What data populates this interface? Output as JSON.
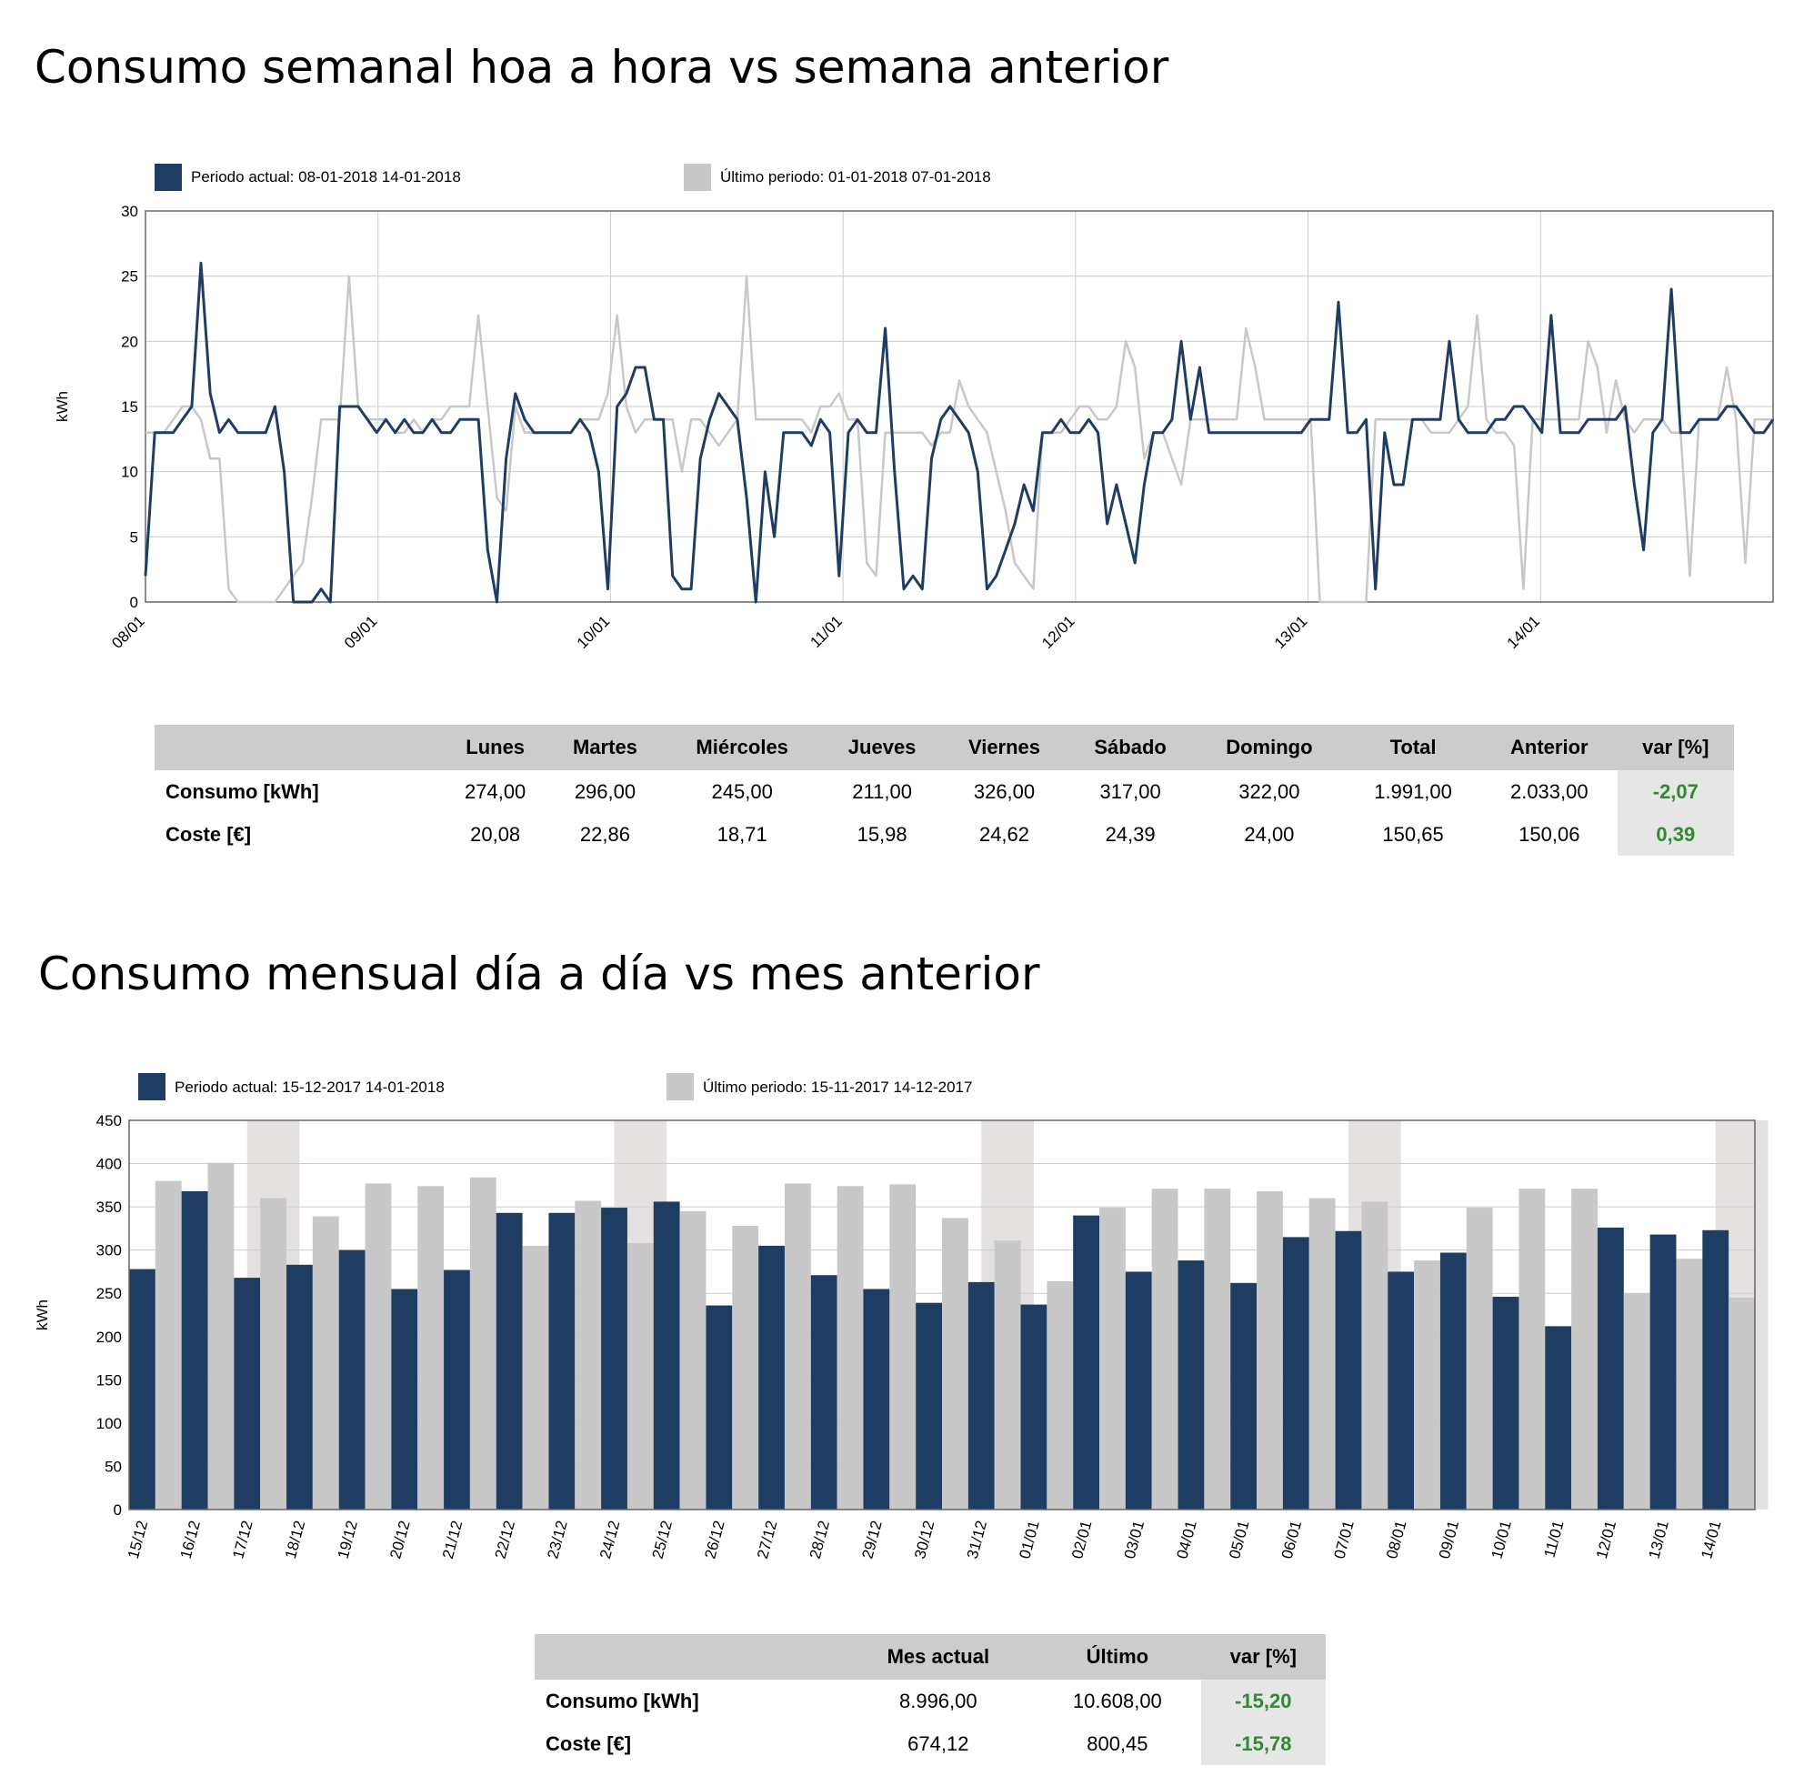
{
  "titles": {
    "weekly": "Consumo semanal hoa a hora vs semana anterior",
    "monthly": "Consumo mensual día a día vs mes anterior"
  },
  "colors": {
    "current": "#1f3d63",
    "previous": "#c8c8c8",
    "highlight": "#e6e1e1",
    "positive": "#2e8b2e"
  },
  "chart_data": [
    {
      "type": "line",
      "ylabel": "kWh",
      "ylim": [
        0,
        30
      ],
      "yticks": [
        0,
        5,
        10,
        15,
        20,
        25,
        30
      ],
      "xlim": [
        0,
        7
      ],
      "xticks": [
        "08/01",
        "09/01",
        "10/01",
        "11/01",
        "12/01",
        "13/01",
        "14/01"
      ],
      "grid": true,
      "legend_position": "top-left",
      "series": [
        {
          "name": "Periodo actual: 08-01-2018 14-01-2018",
          "values": [
            2,
            13,
            13,
            13,
            14,
            15,
            26,
            16,
            13,
            14,
            13,
            13,
            13,
            13,
            15,
            10,
            0,
            0,
            0,
            1,
            0,
            15,
            15,
            15,
            14,
            13,
            14,
            13,
            14,
            13,
            13,
            14,
            13,
            13,
            14,
            14,
            14,
            4,
            0,
            11,
            16,
            14,
            13,
            13,
            13,
            13,
            13,
            14,
            13,
            10,
            1,
            15,
            16,
            18,
            18,
            14,
            14,
            2,
            1,
            1,
            11,
            14,
            16,
            15,
            14,
            8,
            0,
            10,
            5,
            13,
            13,
            13,
            12,
            14,
            13,
            2,
            13,
            14,
            13,
            13,
            21,
            10,
            1,
            2,
            1,
            11,
            14,
            15,
            14,
            13,
            10,
            1,
            2,
            4,
            6,
            9,
            7,
            13,
            13,
            14,
            13,
            13,
            14,
            13,
            6,
            9,
            6,
            3,
            9,
            13,
            13,
            14,
            20,
            14,
            18,
            13,
            13,
            13,
            13,
            13,
            13,
            13,
            13,
            13,
            13,
            13,
            14,
            14,
            14,
            23,
            13,
            13,
            14,
            1,
            13,
            9,
            9,
            14,
            14,
            14,
            14,
            20,
            14,
            13,
            13,
            13,
            14,
            14,
            15,
            15,
            14,
            13,
            22,
            13,
            13,
            13,
            14,
            14,
            14,
            14,
            15,
            9,
            4,
            13,
            14,
            24,
            13,
            13,
            14,
            14,
            14,
            15,
            15,
            14,
            13,
            13,
            14
          ]
        },
        {
          "name": "Último periodo: 01-01-2018 07-01-2018",
          "values": [
            13,
            13,
            13,
            14,
            15,
            15,
            14,
            11,
            11,
            1,
            0,
            0,
            0,
            0,
            0,
            1,
            2,
            3,
            8,
            14,
            14,
            14,
            25,
            15,
            14,
            14,
            14,
            13,
            13,
            14,
            13,
            14,
            14,
            15,
            15,
            15,
            22,
            15,
            8,
            7,
            15,
            13,
            13,
            13,
            13,
            13,
            13,
            14,
            14,
            14,
            16,
            22,
            15,
            13,
            14,
            14,
            14,
            14,
            10,
            14,
            14,
            13,
            12,
            13,
            14,
            25,
            14,
            14,
            14,
            14,
            14,
            14,
            13,
            15,
            15,
            16,
            14,
            14,
            3,
            2,
            13,
            13,
            13,
            13,
            13,
            12,
            13,
            13,
            17,
            15,
            14,
            13,
            10,
            7,
            3,
            2,
            1,
            13,
            13,
            13,
            14,
            15,
            15,
            14,
            14,
            15,
            20,
            18,
            11,
            13,
            13,
            11,
            9,
            14,
            14,
            14,
            14,
            14,
            14,
            21,
            18,
            14,
            14,
            14,
            14,
            14,
            14,
            0,
            0,
            0,
            0,
            0,
            0,
            14,
            14,
            14,
            14,
            14,
            14,
            13,
            13,
            13,
            14,
            15,
            22,
            14,
            13,
            13,
            12,
            1,
            14,
            14,
            14,
            14,
            14,
            14,
            20,
            18,
            13,
            17,
            14,
            13,
            14,
            14,
            14,
            13,
            13,
            2,
            14,
            14,
            14,
            18,
            14,
            3,
            14,
            14,
            14
          ]
        }
      ]
    },
    {
      "type": "bar",
      "ylabel": "kWh",
      "ylim": [
        0,
        450
      ],
      "yticks": [
        0,
        50,
        100,
        150,
        200,
        250,
        300,
        350,
        400,
        450
      ],
      "grid": true,
      "legend_position": "top-left",
      "categories": [
        "15/12",
        "16/12",
        "17/12",
        "18/12",
        "19/12",
        "20/12",
        "21/12",
        "22/12",
        "23/12",
        "24/12",
        "25/12",
        "26/12",
        "27/12",
        "28/12",
        "29/12",
        "30/12",
        "31/12",
        "01/01",
        "02/01",
        "03/01",
        "04/01",
        "05/01",
        "06/01",
        "07/01",
        "08/01",
        "09/01",
        "10/01",
        "11/01",
        "12/01",
        "13/01",
        "14/01"
      ],
      "highlighted_categories": [
        "17/12",
        "24/12",
        "31/12",
        "07/01",
        "14/01"
      ],
      "series": [
        {
          "name": "Periodo actual: 15-12-2017 14-01-2018",
          "values": [
            278,
            368,
            268,
            283,
            300,
            255,
            277,
            343,
            343,
            349,
            356,
            236,
            305,
            271,
            255,
            239,
            263,
            237,
            340,
            275,
            288,
            262,
            315,
            322,
            275,
            297,
            246,
            212,
            326,
            318,
            323
          ]
        },
        {
          "name": "Último periodo: 15-11-2017 14-12-2017",
          "values": [
            380,
            401,
            360,
            339,
            377,
            374,
            384,
            305,
            357,
            308,
            345,
            328,
            377,
            374,
            376,
            337,
            311,
            264,
            349,
            371,
            371,
            368,
            360,
            356,
            288,
            349,
            371,
            371,
            250,
            290,
            245
          ]
        }
      ]
    }
  ],
  "weekly_table": {
    "headers": [
      "",
      "Lunes",
      "Martes",
      "Miércoles",
      "Jueves",
      "Viernes",
      "Sábado",
      "Domingo",
      "Total",
      "Anterior",
      "var [%]"
    ],
    "rows": [
      [
        "Consumo [kWh]",
        "274,00",
        "296,00",
        "245,00",
        "211,00",
        "326,00",
        "317,00",
        "322,00",
        "1.991,00",
        "2.033,00",
        "-2,07"
      ],
      [
        "Coste [€]",
        "20,08",
        "22,86",
        "18,71",
        "15,98",
        "24,62",
        "24,39",
        "24,00",
        "150,65",
        "150,06",
        "0,39"
      ]
    ]
  },
  "monthly_table": {
    "headers": [
      "",
      "Mes actual",
      "Último",
      "var [%]"
    ],
    "rows": [
      [
        "Consumo [kWh]",
        "8.996,00",
        "10.608,00",
        "-15,20"
      ],
      [
        "Coste [€]",
        "674,12",
        "800,45",
        "-15,78"
      ]
    ]
  }
}
